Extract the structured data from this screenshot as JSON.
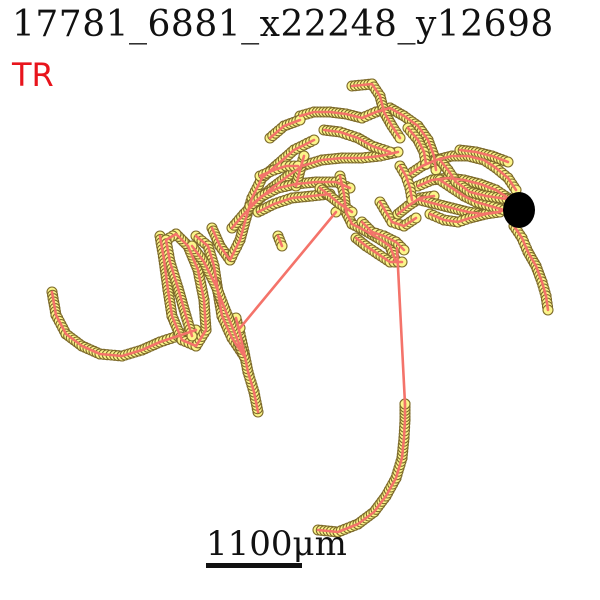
{
  "title": "17781_6881_x22248_y12698",
  "label": "TR",
  "scale_bar": {
    "text": "1100μm"
  },
  "colors": {
    "track_line": "#f4736a",
    "marker_fill": "#fbf58a",
    "marker_stroke": "#7d6a2a",
    "end_blob": "#000000",
    "label": "#e8141c"
  },
  "icons": {
    "end_marker": "black-disc-icon"
  }
}
